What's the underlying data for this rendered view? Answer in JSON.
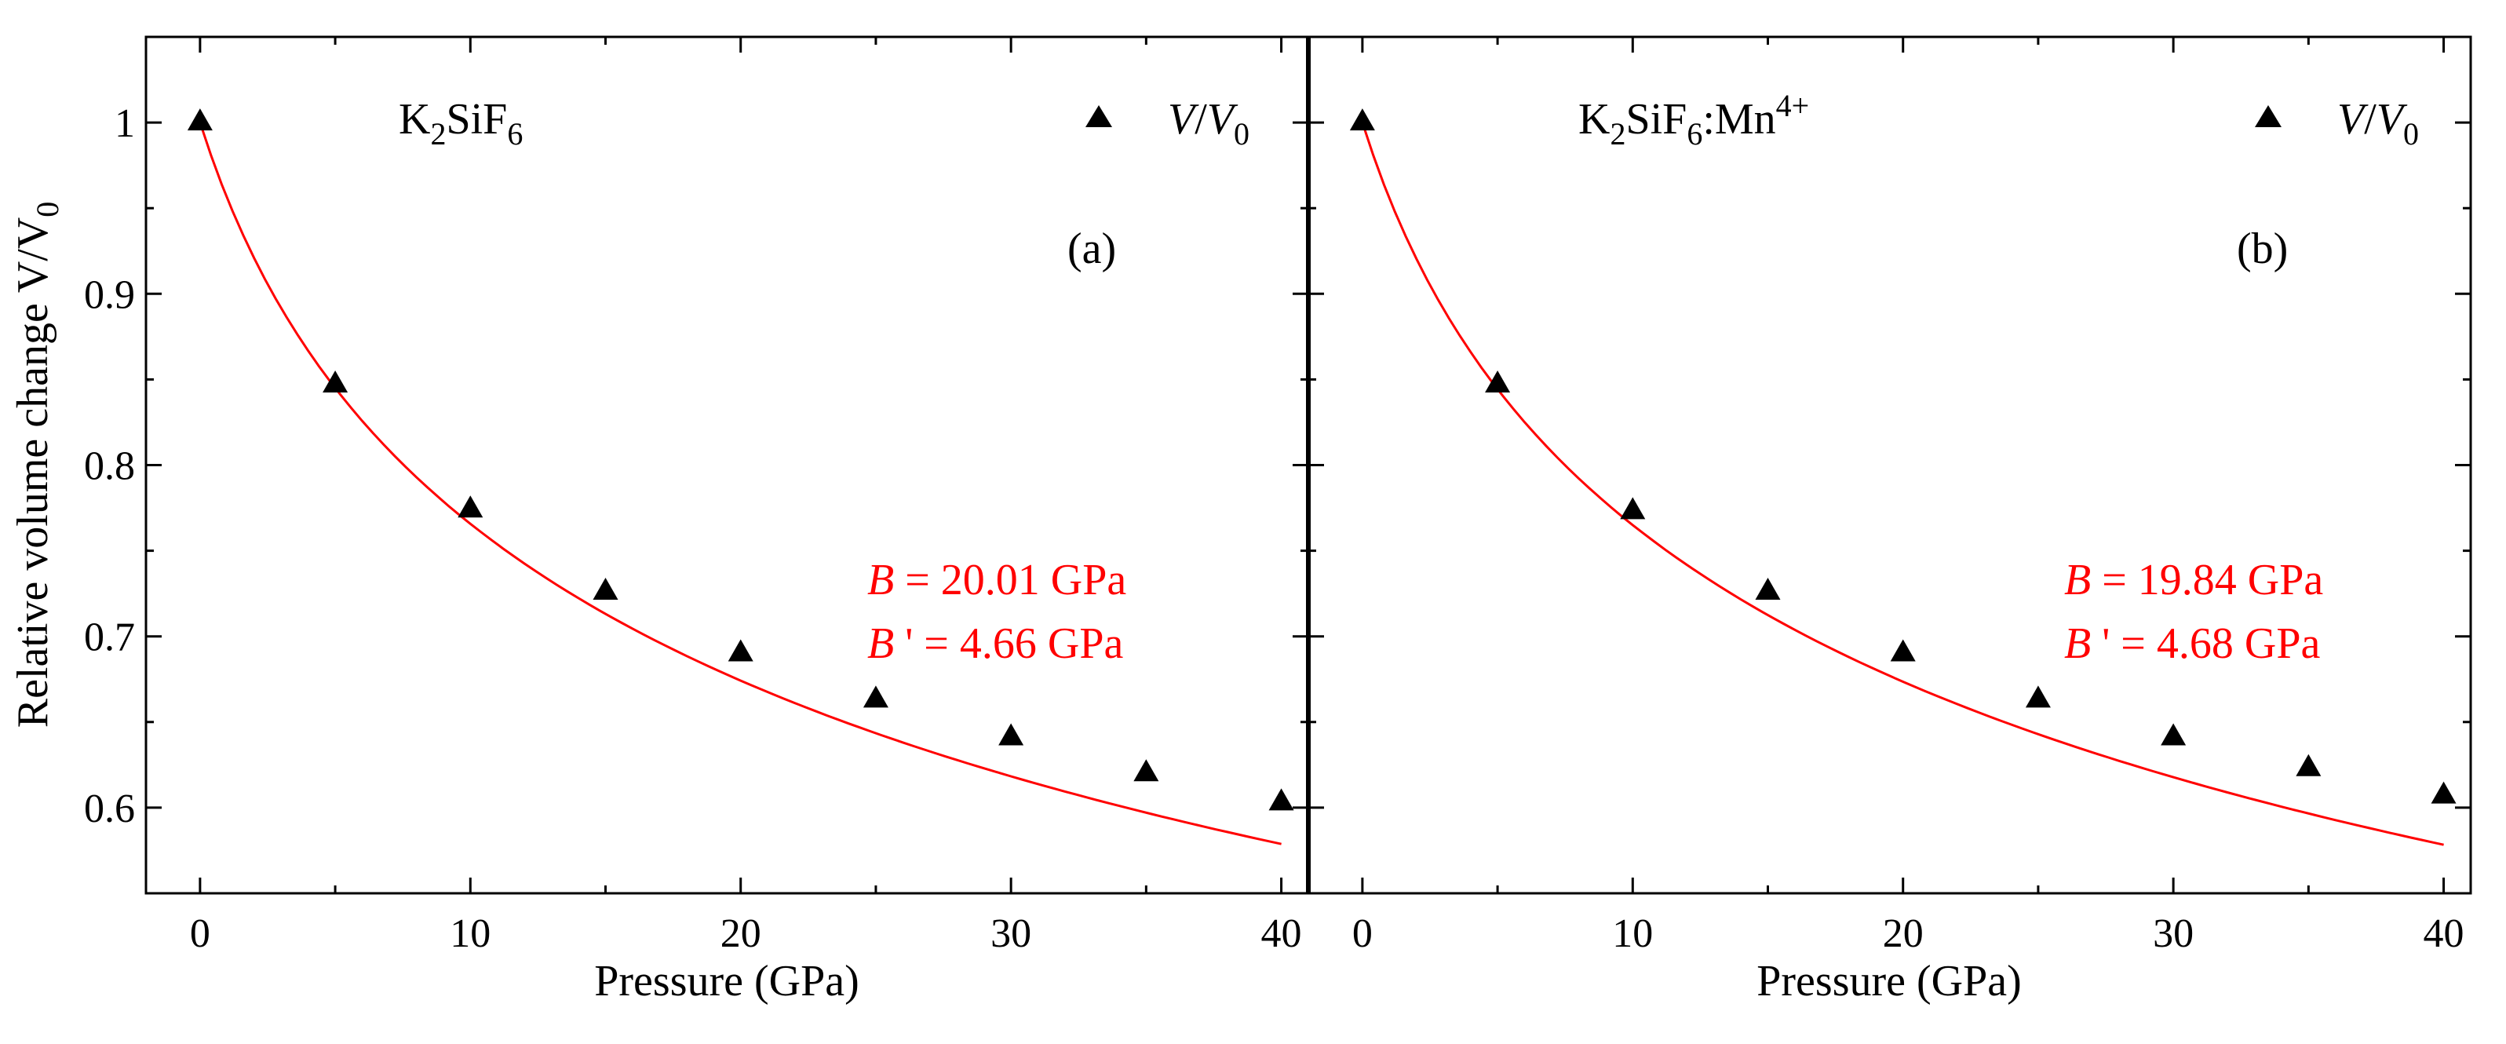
{
  "chart_data": [
    {
      "type": "scatter",
      "panel": "(a)",
      "sample_label": {
        "base": "K",
        "sub1": "2",
        "mid": "SiF",
        "sub2": "6",
        "suffix": "",
        "sup": ""
      },
      "legend": {
        "marker": "triangle",
        "v": "V",
        "slash": "/",
        "v0": "V",
        "sub": "0"
      },
      "xlabel": "Pressure (GPa)",
      "ylabel": "Relative volume change V/V",
      "ylabel_sub": "0",
      "xlim": [
        -2,
        41
      ],
      "ylim": [
        0.55,
        1.05
      ],
      "xticks": [
        0,
        10,
        20,
        30,
        40
      ],
      "xtick_labels": [
        "0",
        "10",
        "20",
        "30",
        "40"
      ],
      "yticks": [
        0.6,
        0.7,
        0.8,
        0.9,
        1.0
      ],
      "ytick_labels": [
        "0.6",
        "0.7",
        "0.8",
        "0.9",
        "1"
      ],
      "x": [
        0,
        5,
        10,
        15,
        20,
        25,
        30,
        35,
        40
      ],
      "y": [
        1.0,
        0.847,
        0.774,
        0.726,
        0.69,
        0.663,
        0.641,
        0.62,
        0.603
      ],
      "fit": {
        "B": 20.01,
        "Bp": 4.66,
        "color": "#ff0000"
      },
      "annotation": {
        "b_sym": "B",
        "b_text": " = 20.01 GPa",
        "bp_sym": "B",
        "bp_text": " ' = 4.66 GPa"
      }
    },
    {
      "type": "scatter",
      "panel": "(b)",
      "sample_label": {
        "base": "K",
        "sub1": "2",
        "mid": "SiF",
        "sub2": "6",
        "suffix": ":Mn",
        "sup": "4+"
      },
      "legend": {
        "marker": "triangle",
        "v": "V",
        "slash": "/",
        "v0": "V",
        "sub": "0"
      },
      "xlabel": "Pressure (GPa)",
      "ylabel": "",
      "xlim": [
        -2,
        41
      ],
      "ylim": [
        0.55,
        1.05
      ],
      "xticks": [
        0,
        10,
        20,
        30,
        40
      ],
      "xtick_labels": [
        "0",
        "10",
        "20",
        "30",
        "40"
      ],
      "yticks": [
        0.6,
        0.7,
        0.8,
        0.9,
        1.0
      ],
      "x": [
        0,
        5,
        10,
        15,
        20,
        25,
        30,
        35,
        40
      ],
      "y": [
        1.0,
        0.847,
        0.773,
        0.726,
        0.69,
        0.663,
        0.641,
        0.623,
        0.607
      ],
      "fit": {
        "B": 19.84,
        "Bp": 4.68,
        "color": "#ff0000"
      },
      "annotation": {
        "b_sym": "B",
        "b_text": " = 19.84 GPa",
        "bp_sym": "B",
        "bp_text": " ' = 4.68 GPa"
      }
    }
  ]
}
